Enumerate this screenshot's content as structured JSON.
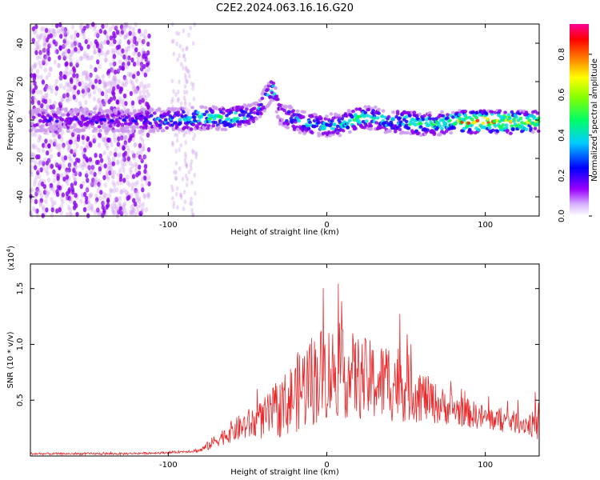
{
  "page_title": "C2E2.2024.063.16.16.G20",
  "colors": {
    "snr_line": "#e8282a",
    "spectrum_dots": [
      "#cc99ee",
      "#8800ee",
      "#2200ff",
      "#00dddd",
      "#00ff44",
      "#ffee00",
      "#ff2200"
    ]
  },
  "chart_data": [
    {
      "type": "heatmap",
      "title": "C2E2.2024.063.16.16.G20",
      "xlabel": "Height of straight line (km)",
      "ylabel": "Frequency (Hz)",
      "xlim": [
        -187,
        134
      ],
      "ylim": [
        -50,
        50
      ],
      "x_ticks": [
        "-100",
        "0",
        "100"
      ],
      "y_ticks": [
        "-40",
        "-20",
        "0",
        "20",
        "40"
      ],
      "colorbar": {
        "label": "Normalized spectral amplitude",
        "range": [
          0,
          0.95
        ],
        "ticks": [
          "0.0",
          "0.2",
          "0.4",
          "0.6",
          "0.8"
        ]
      },
      "ridge": {
        "x": [
          -187,
          -120,
          -100,
          -80,
          -60,
          -45,
          -38,
          -34,
          -30,
          -20,
          -10,
          0,
          10,
          20,
          30,
          40,
          50,
          60,
          70,
          80,
          90,
          100,
          110,
          120,
          134
        ],
        "y": [
          0,
          0,
          0,
          1,
          1,
          3,
          12,
          17,
          4,
          0,
          -2,
          -3,
          -2,
          1,
          1,
          -1,
          -1,
          -2,
          -2,
          -1,
          -1,
          -1,
          -1,
          -1,
          -1
        ],
        "amplitude": [
          0.2,
          0.25,
          0.35,
          0.5,
          0.5,
          0.3,
          0.35,
          0.45,
          0.25,
          0.4,
          0.35,
          0.4,
          0.45,
          0.55,
          0.45,
          0.45,
          0.5,
          0.55,
          0.55,
          0.6,
          0.85,
          0.9,
          0.85,
          0.75,
          0.6
        ]
      }
    },
    {
      "type": "line",
      "xlabel": "Height of straight line (km)",
      "ylabel": "SNR (10 * v/v)",
      "scale_label": "(x10",
      "scale_exponent": "4",
      "scale_suffix": ")",
      "xlim": [
        -187,
        134
      ],
      "ylim": [
        0,
        1.72
      ],
      "x_ticks": [
        "-100",
        "0",
        "100"
      ],
      "y_ticks": [
        "0.5",
        "1.0",
        "1.5"
      ],
      "series": [
        {
          "x": [
            -187,
            -160,
            -130,
            -100,
            -90,
            -80,
            -75,
            -70,
            -65,
            -60,
            -55,
            -50,
            -45,
            -40,
            -35,
            -30,
            -25,
            -20,
            -15,
            -10,
            -5,
            0,
            5,
            10,
            15,
            20,
            25,
            30,
            35,
            40,
            45,
            50,
            55,
            60,
            65,
            70,
            75,
            80,
            85,
            90,
            95,
            100,
            105,
            110,
            115,
            120,
            125,
            130,
            134
          ],
          "y": [
            0.02,
            0.02,
            0.02,
            0.03,
            0.04,
            0.05,
            0.09,
            0.14,
            0.18,
            0.22,
            0.25,
            0.28,
            0.3,
            0.33,
            0.38,
            0.42,
            0.48,
            0.55,
            0.62,
            0.68,
            0.72,
            0.75,
            0.76,
            0.74,
            0.72,
            0.7,
            0.68,
            0.66,
            0.66,
            0.68,
            0.66,
            0.62,
            0.58,
            0.54,
            0.5,
            0.46,
            0.44,
            0.42,
            0.4,
            0.38,
            0.36,
            0.34,
            0.33,
            0.32,
            0.31,
            0.3,
            0.29,
            0.28,
            0.27
          ],
          "noise": [
            0.01,
            0.01,
            0.01,
            0.01,
            0.01,
            0.02,
            0.04,
            0.06,
            0.08,
            0.1,
            0.12,
            0.14,
            0.16,
            0.18,
            0.22,
            0.26,
            0.3,
            0.34,
            0.4,
            0.42,
            0.44,
            0.44,
            0.42,
            0.4,
            0.4,
            0.38,
            0.38,
            0.36,
            0.36,
            0.38,
            0.36,
            0.32,
            0.28,
            0.24,
            0.2,
            0.18,
            0.16,
            0.15,
            0.14,
            0.13,
            0.12,
            0.12,
            0.11,
            0.11,
            0.1,
            0.1,
            0.1,
            0.12,
            0.14
          ]
        }
      ]
    }
  ]
}
